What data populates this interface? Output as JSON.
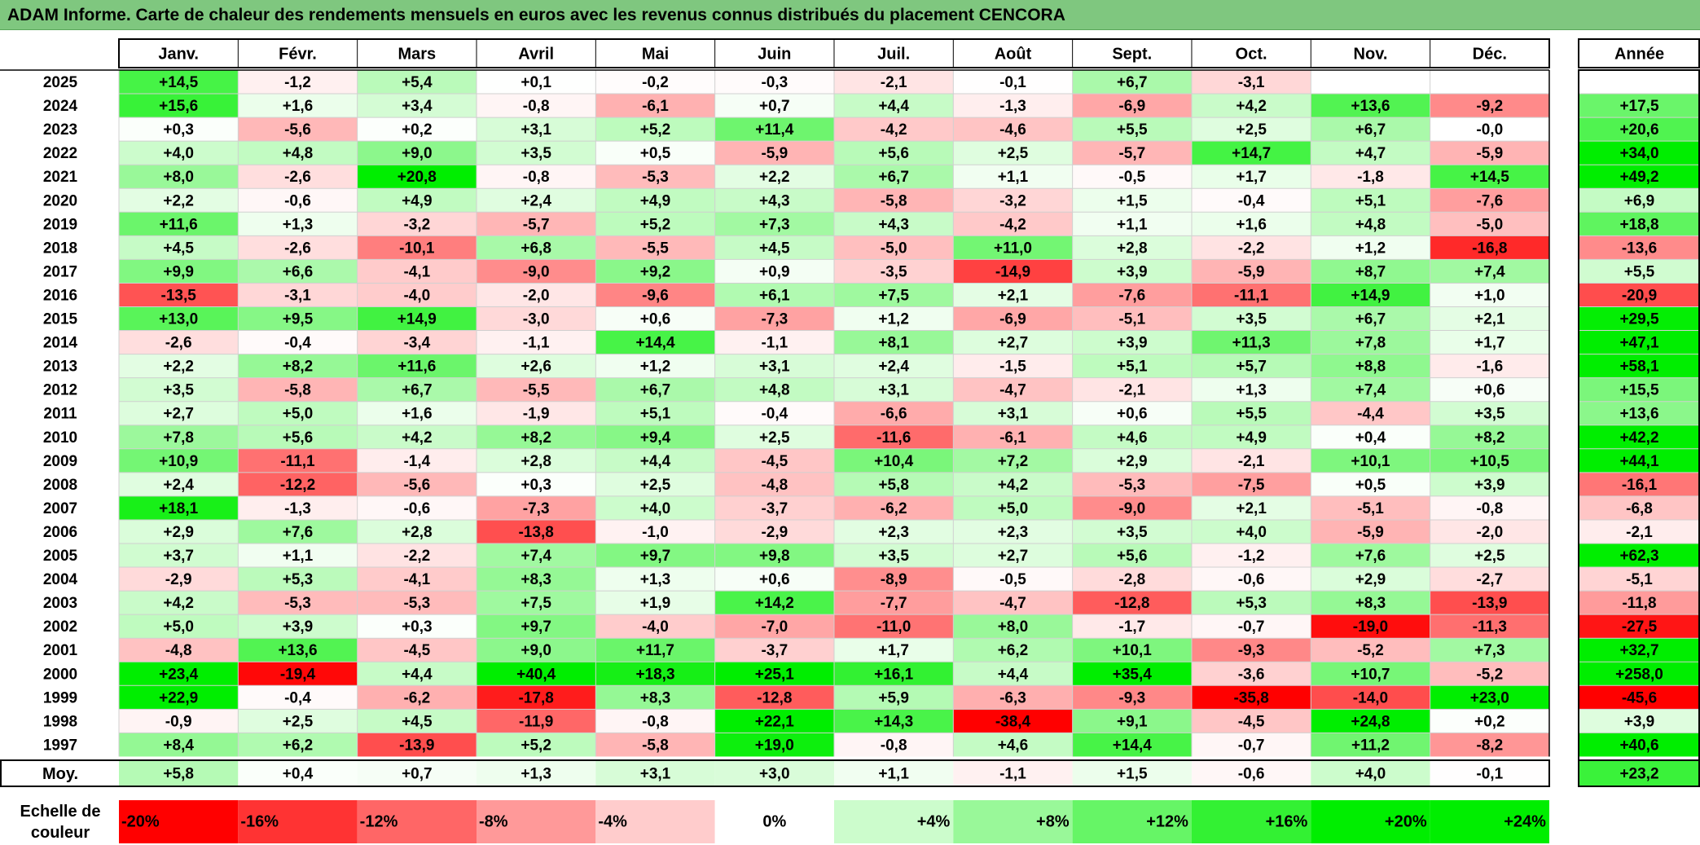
{
  "title": "ADAM Informe. Carte de chaleur des rendements mensuels en euros avec les revenus connus distribués du placement CENCORA",
  "chart_data": {
    "type": "heatmap",
    "title": "ADAM Informe. Carte de chaleur des rendements mensuels en euros avec les revenus connus distribués du placement CENCORA",
    "months": [
      "Janv.",
      "Févr.",
      "Mars",
      "Avril",
      "Mai",
      "Juin",
      "Juil.",
      "Août",
      "Sept.",
      "Oct.",
      "Nov.",
      "Déc."
    ],
    "year_header": "Année",
    "rows": [
      {
        "year": "2025",
        "values": [
          "+14,5",
          "-1,2",
          "+5,4",
          "+0,1",
          "-0,2",
          "-0,3",
          "-2,1",
          "-0,1",
          "+6,7",
          "-3,1",
          "",
          ""
        ],
        "annual": ""
      },
      {
        "year": "2024",
        "values": [
          "+15,6",
          "+1,6",
          "+3,4",
          "-0,8",
          "-6,1",
          "+0,7",
          "+4,4",
          "-1,3",
          "-6,9",
          "+4,2",
          "+13,6",
          "-9,2"
        ],
        "annual": "+17,5"
      },
      {
        "year": "2023",
        "values": [
          "+0,3",
          "-5,6",
          "+0,2",
          "+3,1",
          "+5,2",
          "+11,4",
          "-4,2",
          "-4,6",
          "+5,5",
          "+2,5",
          "+6,7",
          "-0,0"
        ],
        "annual": "+20,6"
      },
      {
        "year": "2022",
        "values": [
          "+4,0",
          "+4,8",
          "+9,0",
          "+3,5",
          "+0,5",
          "-5,9",
          "+5,6",
          "+2,5",
          "-5,7",
          "+14,7",
          "+4,7",
          "-5,9"
        ],
        "annual": "+34,0"
      },
      {
        "year": "2021",
        "values": [
          "+8,0",
          "-2,6",
          "+20,8",
          "-0,8",
          "-5,3",
          "+2,2",
          "+6,7",
          "+1,1",
          "-0,5",
          "+1,7",
          "-1,8",
          "+14,5"
        ],
        "annual": "+49,2"
      },
      {
        "year": "2020",
        "values": [
          "+2,2",
          "-0,6",
          "+4,9",
          "+2,4",
          "+4,9",
          "+4,3",
          "-5,8",
          "-3,2",
          "+1,5",
          "-0,4",
          "+5,1",
          "-7,6"
        ],
        "annual": "+6,9"
      },
      {
        "year": "2019",
        "values": [
          "+11,6",
          "+1,3",
          "-3,2",
          "-5,7",
          "+5,2",
          "+7,3",
          "+4,3",
          "-4,2",
          "+1,1",
          "+1,6",
          "+4,8",
          "-5,0"
        ],
        "annual": "+18,8"
      },
      {
        "year": "2018",
        "values": [
          "+4,5",
          "-2,6",
          "-10,1",
          "+6,8",
          "-5,5",
          "+4,5",
          "-5,0",
          "+11,0",
          "+2,8",
          "-2,2",
          "+1,2",
          "-16,8"
        ],
        "annual": "-13,6"
      },
      {
        "year": "2017",
        "values": [
          "+9,9",
          "+6,6",
          "-4,1",
          "-9,0",
          "+9,2",
          "+0,9",
          "-3,5",
          "-14,9",
          "+3,9",
          "-5,9",
          "+8,7",
          "+7,4"
        ],
        "annual": "+5,5"
      },
      {
        "year": "2016",
        "values": [
          "-13,5",
          "-3,1",
          "-4,0",
          "-2,0",
          "-9,6",
          "+6,1",
          "+7,5",
          "+2,1",
          "-7,6",
          "-11,1",
          "+14,9",
          "+1,0"
        ],
        "annual": "-20,9"
      },
      {
        "year": "2015",
        "values": [
          "+13,0",
          "+9,5",
          "+14,9",
          "-3,0",
          "+0,6",
          "-7,3",
          "+1,2",
          "-6,9",
          "-5,1",
          "+3,5",
          "+6,7",
          "+2,1"
        ],
        "annual": "+29,5"
      },
      {
        "year": "2014",
        "values": [
          "-2,6",
          "-0,4",
          "-3,4",
          "-1,1",
          "+14,4",
          "-1,1",
          "+8,1",
          "+2,7",
          "+3,9",
          "+11,3",
          "+7,8",
          "+1,7"
        ],
        "annual": "+47,1"
      },
      {
        "year": "2013",
        "values": [
          "+2,2",
          "+8,2",
          "+11,6",
          "+2,6",
          "+1,2",
          "+3,1",
          "+2,4",
          "-1,5",
          "+5,1",
          "+5,7",
          "+8,8",
          "-1,6"
        ],
        "annual": "+58,1"
      },
      {
        "year": "2012",
        "values": [
          "+3,5",
          "-5,8",
          "+6,7",
          "-5,5",
          "+6,7",
          "+4,8",
          "+3,1",
          "-4,7",
          "-2,1",
          "+1,3",
          "+7,4",
          "+0,6"
        ],
        "annual": "+15,5"
      },
      {
        "year": "2011",
        "values": [
          "+2,7",
          "+5,0",
          "+1,6",
          "-1,9",
          "+5,1",
          "-0,4",
          "-6,6",
          "+3,1",
          "+0,6",
          "+5,5",
          "-4,4",
          "+3,5"
        ],
        "annual": "+13,6"
      },
      {
        "year": "2010",
        "values": [
          "+7,8",
          "+5,6",
          "+4,2",
          "+8,2",
          "+9,4",
          "+2,5",
          "-11,6",
          "-6,1",
          "+4,6",
          "+4,9",
          "+0,4",
          "+8,2"
        ],
        "annual": "+42,2"
      },
      {
        "year": "2009",
        "values": [
          "+10,9",
          "-11,1",
          "-1,4",
          "+2,8",
          "+4,4",
          "-4,5",
          "+10,4",
          "+7,2",
          "+2,9",
          "-2,1",
          "+10,1",
          "+10,5"
        ],
        "annual": "+44,1"
      },
      {
        "year": "2008",
        "values": [
          "+2,4",
          "-12,2",
          "-5,6",
          "+0,3",
          "+2,5",
          "-4,8",
          "+5,8",
          "+4,2",
          "-5,3",
          "-7,5",
          "+0,5",
          "+3,9"
        ],
        "annual": "-16,1"
      },
      {
        "year": "2007",
        "values": [
          "+18,1",
          "-1,3",
          "-0,6",
          "-7,3",
          "+4,0",
          "-3,7",
          "-6,2",
          "+5,0",
          "-9,0",
          "+2,1",
          "-5,1",
          "-0,8"
        ],
        "annual": "-6,8"
      },
      {
        "year": "2006",
        "values": [
          "+2,9",
          "+7,6",
          "+2,8",
          "-13,8",
          "-1,0",
          "-2,9",
          "+2,3",
          "+2,3",
          "+3,5",
          "+4,0",
          "-5,9",
          "-2,0"
        ],
        "annual": "-2,1"
      },
      {
        "year": "2005",
        "values": [
          "+3,7",
          "+1,1",
          "-2,2",
          "+7,4",
          "+9,7",
          "+9,8",
          "+3,5",
          "+2,7",
          "+5,6",
          "-1,2",
          "+7,6",
          "+2,5"
        ],
        "annual": "+62,3"
      },
      {
        "year": "2004",
        "values": [
          "-2,9",
          "+5,3",
          "-4,1",
          "+8,3",
          "+1,3",
          "+0,6",
          "-8,9",
          "-0,5",
          "-2,8",
          "-0,6",
          "+2,9",
          "-2,7"
        ],
        "annual": "-5,1"
      },
      {
        "year": "2003",
        "values": [
          "+4,2",
          "-5,3",
          "-5,3",
          "+7,5",
          "+1,9",
          "+14,2",
          "-7,7",
          "-4,7",
          "-12,8",
          "+5,3",
          "+8,3",
          "-13,9"
        ],
        "annual": "-11,8"
      },
      {
        "year": "2002",
        "values": [
          "+5,0",
          "+3,9",
          "+0,3",
          "+9,7",
          "-4,0",
          "-7,0",
          "-11,0",
          "+8,0",
          "-1,7",
          "-0,7",
          "-19,0",
          "-11,3"
        ],
        "annual": "-27,5"
      },
      {
        "year": "2001",
        "values": [
          "-4,8",
          "+13,6",
          "-4,5",
          "+9,0",
          "+11,7",
          "-3,7",
          "+1,7",
          "+6,2",
          "+10,1",
          "-9,3",
          "-5,2",
          "+7,3"
        ],
        "annual": "+32,7"
      },
      {
        "year": "2000",
        "values": [
          "+23,4",
          "-19,4",
          "+4,4",
          "+40,4",
          "+18,3",
          "+25,1",
          "+16,1",
          "+4,4",
          "+35,4",
          "-3,6",
          "+10,7",
          "-5,2"
        ],
        "annual": "+258,0"
      },
      {
        "year": "1999",
        "values": [
          "+22,9",
          "-0,4",
          "-6,2",
          "-17,8",
          "+8,3",
          "-12,8",
          "+5,9",
          "-6,3",
          "-9,3",
          "-35,8",
          "-14,0",
          "+23,0"
        ],
        "annual": "-45,6"
      },
      {
        "year": "1998",
        "values": [
          "-0,9",
          "+2,5",
          "+4,5",
          "-11,9",
          "-0,8",
          "+22,1",
          "+14,3",
          "-38,4",
          "+9,1",
          "-4,5",
          "+24,8",
          "+0,2"
        ],
        "annual": "+3,9"
      },
      {
        "year": "1997",
        "values": [
          "+8,4",
          "+6,2",
          "-13,9",
          "+5,2",
          "-5,8",
          "+19,0",
          "-0,8",
          "+4,6",
          "+14,4",
          "-0,7",
          "+11,2",
          "-8,2"
        ],
        "annual": "+40,6"
      }
    ],
    "average": {
      "label": "Moy.",
      "values": [
        "+5,8",
        "+0,4",
        "+0,7",
        "+1,3",
        "+3,1",
        "+3,0",
        "+1,1",
        "-1,1",
        "+1,5",
        "-0,6",
        "+4,0",
        "-0,1"
      ],
      "annual": "+23,2"
    },
    "scale": {
      "label_line1": "Echelle de",
      "label_line2": "couleur",
      "steps": [
        "-20%",
        "-16%",
        "-12%",
        "-8%",
        "-4%",
        "0%",
        "+4%",
        "+8%",
        "+12%",
        "+16%",
        "+20%",
        "+24%"
      ],
      "step_values": [
        -20,
        -16,
        -12,
        -8,
        -4,
        0,
        4,
        8,
        12,
        16,
        20,
        24
      ]
    },
    "colors": {
      "title_bg": "#7fc77f",
      "negative_max": "#ff0000",
      "neutral": "#ffffff",
      "positive_max": "#00ee00"
    }
  }
}
